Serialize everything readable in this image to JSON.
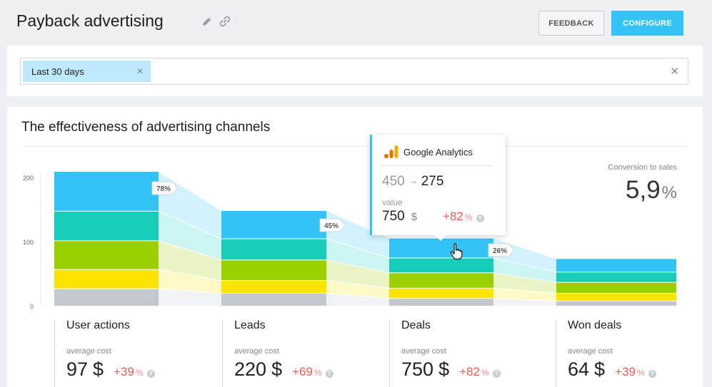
{
  "header": {
    "title": "Payback advertising",
    "feedback_label": "FEEDBACK",
    "configure_label": "CONFIGURE"
  },
  "filter": {
    "chip_label": "Last 30 days"
  },
  "section": {
    "title": "The effectiveness of advertising channels"
  },
  "conversion": {
    "label": "Conversion to sales",
    "value": "5,9",
    "unit": "%"
  },
  "tooltip": {
    "source": "Google Analytics",
    "from": "450",
    "to": "275",
    "value_label": "value",
    "value": "750",
    "currency": "$",
    "delta": "+82",
    "delta_unit": "%"
  },
  "stats": [
    {
      "title": "User actions",
      "sub": "average cost",
      "value": "97",
      "currency": "$",
      "delta": "+39",
      "unit": "%"
    },
    {
      "title": "Leads",
      "sub": "average cost",
      "value": "220",
      "currency": "$",
      "delta": "+69",
      "unit": "%"
    },
    {
      "title": "Deals",
      "sub": "average cost",
      "value": "750",
      "currency": "$",
      "delta": "+82",
      "unit": "%"
    },
    {
      "title": "Won deals",
      "sub": "average cost",
      "value": "64",
      "currency": "$",
      "delta": "+39",
      "unit": "%"
    }
  ],
  "colors": {
    "accent": "#33c4f5",
    "negative_delta": "#ef5b5b"
  },
  "chart_data": {
    "type": "bar",
    "stacked": true,
    "categories": [
      "User actions",
      "Leads",
      "Deals",
      "Won deals"
    ],
    "ylim": [
      0,
      210
    ],
    "yticks": [
      0,
      100,
      200
    ],
    "series": [
      {
        "color": "#c3c8cf",
        "values": [
          27,
          20,
          12,
          8
        ]
      },
      {
        "color": "#fbe400",
        "values": [
          30,
          20,
          16,
          12
        ]
      },
      {
        "color": "#9ccf00",
        "values": [
          45,
          32,
          24,
          17
        ]
      },
      {
        "color": "#17cdb9",
        "values": [
          46,
          33,
          23,
          16
        ]
      },
      {
        "color": "#33c4f5",
        "values": [
          62,
          44,
          31,
          21
        ]
      }
    ],
    "conversion_labels": [
      "78%",
      "45%",
      "26%"
    ]
  }
}
